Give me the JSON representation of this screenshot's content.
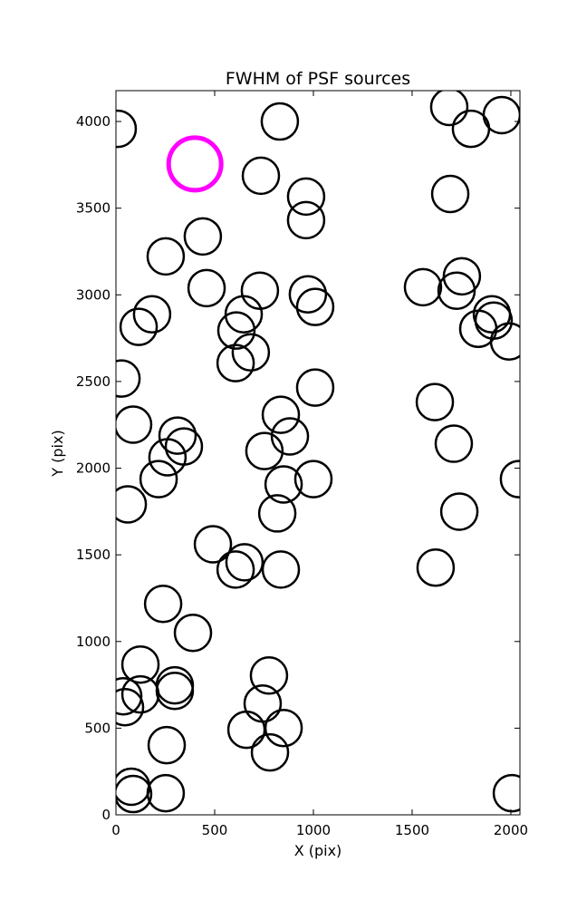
{
  "chart_data": {
    "type": "scatter",
    "title": "FWHM of PSF sources",
    "xlabel": "X (pix)",
    "ylabel": "Y (pix)",
    "xlim": [
      0,
      2046
    ],
    "ylim": [
      0,
      4178
    ],
    "xticks": [
      0,
      500,
      1000,
      1500,
      2000
    ],
    "yticks": [
      0,
      500,
      1000,
      1500,
      2000,
      2500,
      3000,
      3500,
      4000
    ],
    "xtick_labels": [
      "0",
      "500",
      "1000",
      "1500",
      "2000"
    ],
    "ytick_labels": [
      "0",
      "500",
      "1000",
      "1500",
      "2000",
      "2500",
      "3000",
      "3500",
      "4000"
    ],
    "grid": false,
    "marker": "open circle",
    "colors": {
      "default": "#000000",
      "highlight": "#ff00ff"
    },
    "highlight": {
      "x": 400,
      "y": 3755
    },
    "points": [
      [
        9,
        3958
      ],
      [
        830,
        4000
      ],
      [
        734,
        3687
      ],
      [
        963,
        3567
      ],
      [
        963,
        3431
      ],
      [
        440,
        3337
      ],
      [
        252,
        3222
      ],
      [
        459,
        3039
      ],
      [
        729,
        3024
      ],
      [
        972,
        3003
      ],
      [
        1009,
        2930
      ],
      [
        183,
        2888
      ],
      [
        115,
        2815
      ],
      [
        647,
        2888
      ],
      [
        610,
        2794
      ],
      [
        683,
        2668
      ],
      [
        606,
        2606
      ],
      [
        28,
        2517
      ],
      [
        1009,
        2465
      ],
      [
        835,
        2308
      ],
      [
        881,
        2183
      ],
      [
        752,
        2099
      ],
      [
        87,
        2251
      ],
      [
        312,
        2188
      ],
      [
        344,
        2125
      ],
      [
        261,
        2063
      ],
      [
        216,
        1937
      ],
      [
        849,
        1906
      ],
      [
        1000,
        1937
      ],
      [
        817,
        1739
      ],
      [
        60,
        1791
      ],
      [
        491,
        1561
      ],
      [
        606,
        1415
      ],
      [
        651,
        1457
      ],
      [
        835,
        1415
      ],
      [
        239,
        1217
      ],
      [
        390,
        1050
      ],
      [
        124,
        867
      ],
      [
        298,
        747
      ],
      [
        298,
        715
      ],
      [
        124,
        695
      ],
      [
        37,
        684
      ],
      [
        46,
        621
      ],
      [
        775,
        804
      ],
      [
        743,
        642
      ],
      [
        661,
        491
      ],
      [
        849,
        501
      ],
      [
        780,
        360
      ],
      [
        257,
        402
      ],
      [
        78,
        162
      ],
      [
        87,
        120
      ],
      [
        252,
        125
      ],
      [
        1688,
        4084
      ],
      [
        1798,
        3958
      ],
      [
        1954,
        4037
      ],
      [
        1693,
        3582
      ],
      [
        1555,
        3044
      ],
      [
        1752,
        3107
      ],
      [
        1725,
        3024
      ],
      [
        1904,
        2888
      ],
      [
        1913,
        2851
      ],
      [
        1835,
        2804
      ],
      [
        1991,
        2731
      ],
      [
        1615,
        2381
      ],
      [
        1711,
        2141
      ],
      [
        2041,
        1937
      ],
      [
        1739,
        1749
      ],
      [
        1619,
        1426
      ],
      [
        2005,
        125
      ]
    ]
  }
}
